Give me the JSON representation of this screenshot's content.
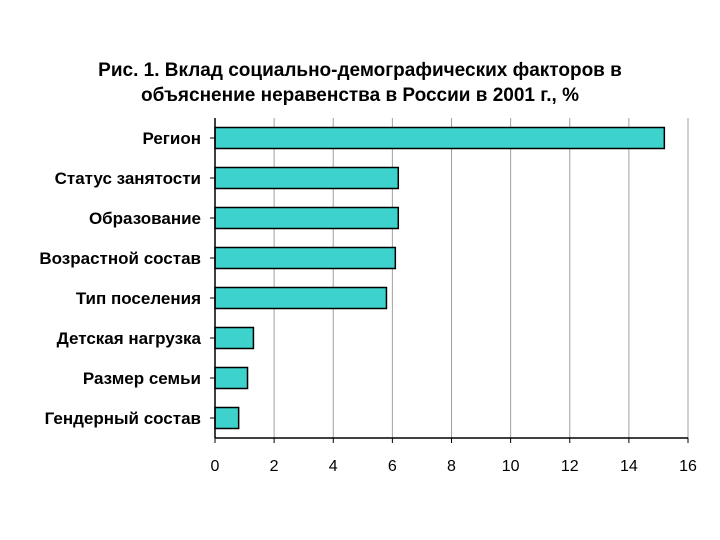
{
  "chart_data": {
    "type": "bar",
    "orientation": "horizontal",
    "title_lines": [
      "Рис. 1. Вклад социально-демографических факторов в",
      "объяснение неравенства в России в 2001 г., %"
    ],
    "categories": [
      "Регион",
      "Статус занятости",
      "Образование",
      "Возрастной состав",
      "Тип поселения",
      "Детская нагрузка",
      "Размер семьи",
      "Гендерный состав"
    ],
    "values": [
      15.2,
      6.2,
      6.2,
      6.1,
      5.8,
      1.3,
      1.1,
      0.8
    ],
    "xlim": [
      0,
      16
    ],
    "xticks": [
      "0",
      "2",
      "4",
      "6",
      "8",
      "10",
      "12",
      "14",
      "16"
    ],
    "xlabel": "",
    "ylabel": "",
    "grid": "vertical",
    "legend": "none",
    "bar_color": "#3dd3cc",
    "bar_edge_color": "#000000",
    "grid_color": "#a0a0a0"
  }
}
